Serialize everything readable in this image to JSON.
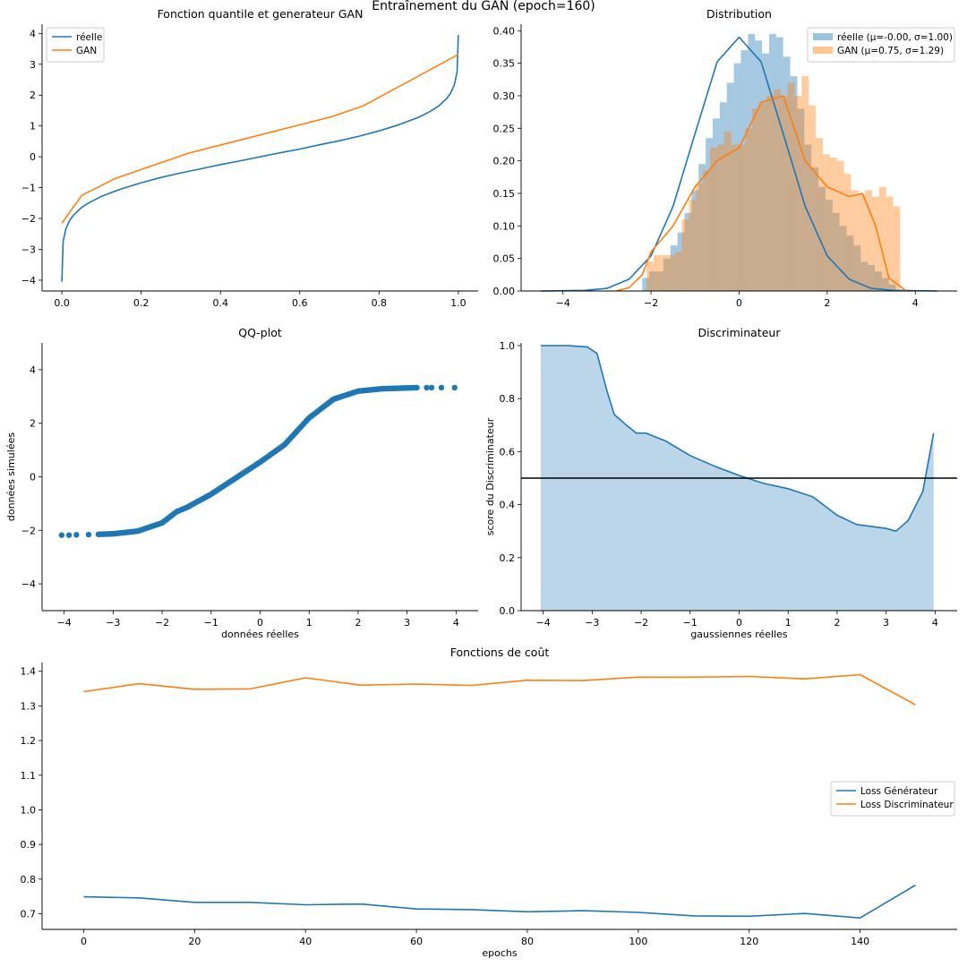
{
  "suptitle": "Entraînement du GAN (epoch=160)",
  "colors": {
    "blue": "#1f77b4",
    "orange": "#ff7f0e",
    "black": "#000000"
  },
  "chart_data": [
    {
      "id": "quantile",
      "type": "line",
      "title": "Fonction quantile et generateur GAN",
      "xlabel": "",
      "ylabel": "",
      "xlim": [
        -0.05,
        1.05
      ],
      "ylim": [
        -4.35,
        4.3
      ],
      "xticks": [
        0.0,
        0.2,
        0.4,
        0.6,
        0.8,
        1.0
      ],
      "xtick_labels": [
        "0.0",
        "0.2",
        "0.4",
        "0.6",
        "0.8",
        "1.0"
      ],
      "yticks": [
        -4,
        -3,
        -2,
        -1,
        0,
        1,
        2,
        3,
        4
      ],
      "ytick_labels": [
        "−4",
        "−3",
        "−2",
        "−1",
        "0",
        "1",
        "2",
        "3",
        "4"
      ],
      "legend": "top-left",
      "series": [
        {
          "name": "réelle",
          "color": "#1f77b4",
          "x": [
            0.0,
            0.003,
            0.01,
            0.02,
            0.03,
            0.05,
            0.07,
            0.1,
            0.15,
            0.2,
            0.25,
            0.3,
            0.35,
            0.4,
            0.45,
            0.5,
            0.55,
            0.6,
            0.65,
            0.7,
            0.75,
            0.8,
            0.85,
            0.9,
            0.93,
            0.95,
            0.97,
            0.98,
            0.99,
            0.997,
            1.0
          ],
          "y": [
            -4.05,
            -2.75,
            -2.33,
            -2.05,
            -1.88,
            -1.64,
            -1.48,
            -1.28,
            -1.04,
            -0.84,
            -0.67,
            -0.52,
            -0.39,
            -0.25,
            -0.13,
            0.0,
            0.13,
            0.25,
            0.39,
            0.52,
            0.67,
            0.84,
            1.04,
            1.28,
            1.48,
            1.64,
            1.88,
            2.05,
            2.33,
            2.75,
            3.95
          ]
        },
        {
          "name": "GAN",
          "color": "#ff7f0e",
          "x": [
            0.0,
            0.05,
            0.135,
            0.32,
            0.68,
            0.76,
            1.0
          ],
          "y": [
            -2.15,
            -1.25,
            -0.7,
            0.12,
            1.3,
            1.65,
            3.32
          ]
        }
      ]
    },
    {
      "id": "distribution",
      "type": "bar",
      "title": "Distribution",
      "xlabel": "",
      "ylabel": "",
      "xlim": [
        -4.95,
        4.95
      ],
      "ylim": [
        0,
        0.41
      ],
      "xticks": [
        -4,
        -2,
        0,
        2,
        4
      ],
      "xtick_labels": [
        "−4",
        "−2",
        "0",
        "2",
        "4"
      ],
      "yticks": [
        0.0,
        0.05,
        0.1,
        0.15,
        0.2,
        0.25,
        0.3,
        0.35,
        0.4
      ],
      "ytick_labels": [
        "0.00",
        "0.05",
        "0.10",
        "0.15",
        "0.20",
        "0.25",
        "0.30",
        "0.35",
        "0.40"
      ],
      "legend": "top-right",
      "series": [
        {
          "name": "réelle (μ=-0.00, σ=1.00)",
          "color": "#1f77b4",
          "bins_x0": -2.2,
          "bin_width": 0.16,
          "hist": [
            0.02,
            0.03,
            0.03,
            0.05,
            0.07,
            0.09,
            0.12,
            0.155,
            0.195,
            0.235,
            0.265,
            0.29,
            0.32,
            0.35,
            0.37,
            0.395,
            0.385,
            0.365,
            0.395,
            0.39,
            0.36,
            0.33,
            0.28,
            0.225,
            0.19,
            0.16,
            0.14,
            0.12,
            0.1,
            0.085,
            0.07,
            0.045,
            0.04,
            0.03,
            0.02,
            0.01
          ],
          "kde_x": [
            -4.5,
            -3.5,
            -3.0,
            -2.5,
            -2.0,
            -1.5,
            -1.0,
            -0.5,
            0.0,
            0.5,
            1.0,
            1.5,
            2.0,
            2.5,
            3.0,
            3.5,
            4.5
          ],
          "kde_y": [
            0.0,
            0.001,
            0.004,
            0.018,
            0.054,
            0.13,
            0.242,
            0.352,
            0.39,
            0.352,
            0.242,
            0.13,
            0.054,
            0.018,
            0.004,
            0.001,
            0.0
          ]
        },
        {
          "name": "GAN (μ=0.75, σ=1.29)",
          "color": "#ff7f0e",
          "bins_x0": -2.1,
          "bin_width": 0.16,
          "hist": [
            0.045,
            0.055,
            0.055,
            0.055,
            0.06,
            0.11,
            0.14,
            0.165,
            0.185,
            0.22,
            0.225,
            0.245,
            0.225,
            0.225,
            0.25,
            0.28,
            0.29,
            0.3,
            0.31,
            0.3,
            0.32,
            0.3,
            0.33,
            0.285,
            0.235,
            0.21,
            0.205,
            0.2,
            0.18,
            0.155,
            0.15,
            0.155,
            0.145,
            0.16,
            0.145,
            0.13
          ],
          "kde_x": [
            -2.8,
            -2.5,
            -2.2,
            -2.0,
            -1.5,
            -1.0,
            -0.5,
            0.0,
            0.5,
            1.0,
            1.5,
            2.0,
            2.5,
            2.8,
            3.1,
            3.4,
            3.8
          ],
          "kde_y": [
            0.0,
            0.005,
            0.025,
            0.06,
            0.1,
            0.16,
            0.2,
            0.22,
            0.29,
            0.3,
            0.2,
            0.16,
            0.145,
            0.15,
            0.1,
            0.02,
            0.0
          ]
        }
      ]
    },
    {
      "id": "qqplot",
      "type": "scatter",
      "title": "QQ-plot",
      "xlabel": "données réelles",
      "ylabel": "données simulées",
      "xlim": [
        -4.45,
        4.45
      ],
      "ylim": [
        -5.0,
        5.0
      ],
      "xticks": [
        -4,
        -3,
        -2,
        -1,
        0,
        1,
        2,
        3,
        4
      ],
      "xtick_labels": [
        "−4",
        "−3",
        "−2",
        "−1",
        "0",
        "1",
        "2",
        "3",
        "4"
      ],
      "yticks": [
        -4,
        -2,
        0,
        2,
        4
      ],
      "ytick_labels": [
        "−4",
        "−2",
        "0",
        "2",
        "4"
      ],
      "series": [
        {
          "color": "#1f77b4",
          "curve_x": [
            -3.3,
            -3.0,
            -2.5,
            -2.0,
            -1.7,
            -1.5,
            -1.0,
            -0.5,
            0.0,
            0.5,
            1.0,
            1.5,
            2.0,
            2.5,
            3.2
          ],
          "curve_y": [
            -2.15,
            -2.13,
            -2.03,
            -1.72,
            -1.3,
            -1.15,
            -0.65,
            -0.05,
            0.55,
            1.2,
            2.2,
            2.9,
            3.2,
            3.29,
            3.33
          ],
          "outliers_x": [
            -4.05,
            -3.9,
            -3.75,
            -3.5,
            3.4,
            3.5,
            3.7,
            3.97
          ],
          "outliers_y": [
            -2.18,
            -2.18,
            -2.17,
            -2.16,
            3.33,
            3.33,
            3.33,
            3.33
          ]
        }
      ]
    },
    {
      "id": "discriminator",
      "type": "area",
      "title": "Discriminateur",
      "xlabel": "gaussiennes réelles",
      "ylabel": "score du Discriminateur",
      "xlim": [
        -4.45,
        4.45
      ],
      "ylim": [
        0,
        1.01
      ],
      "xticks": [
        -4,
        -3,
        -2,
        -1,
        0,
        1,
        2,
        3,
        4
      ],
      "xtick_labels": [
        "−4",
        "−3",
        "−2",
        "−1",
        "0",
        "1",
        "2",
        "3",
        "4"
      ],
      "yticks": [
        0.0,
        0.2,
        0.4,
        0.6,
        0.8,
        1.0
      ],
      "ytick_labels": [
        "0.0",
        "0.2",
        "0.4",
        "0.6",
        "0.8",
        "1.0"
      ],
      "hline": 0.5,
      "series": [
        {
          "color": "#1f77b4",
          "x": [
            -4.05,
            -3.5,
            -3.1,
            -2.9,
            -2.7,
            -2.55,
            -2.3,
            -2.1,
            -1.9,
            -1.5,
            -1.0,
            -0.5,
            0.0,
            0.5,
            1.0,
            1.5,
            2.0,
            2.4,
            2.8,
            3.0,
            3.2,
            3.45,
            3.75,
            3.97
          ],
          "y": [
            1.0,
            1.0,
            0.995,
            0.97,
            0.83,
            0.74,
            0.7,
            0.67,
            0.67,
            0.64,
            0.585,
            0.545,
            0.51,
            0.48,
            0.46,
            0.43,
            0.36,
            0.325,
            0.315,
            0.31,
            0.3,
            0.34,
            0.45,
            0.67
          ]
        }
      ]
    },
    {
      "id": "losses",
      "type": "line",
      "title": "Fonctions de coût",
      "xlabel": "epochs",
      "ylabel": "",
      "xlim": [
        -7.5,
        157.5
      ],
      "ylim": [
        0.655,
        1.425
      ],
      "xticks": [
        0,
        20,
        40,
        60,
        80,
        100,
        120,
        140
      ],
      "xtick_labels": [
        "0",
        "20",
        "40",
        "60",
        "80",
        "100",
        "120",
        "140"
      ],
      "yticks": [
        0.7,
        0.8,
        0.9,
        1.0,
        1.1,
        1.2,
        1.3,
        1.4
      ],
      "ytick_labels": [
        "0.7",
        "0.8",
        "0.9",
        "1.0",
        "1.1",
        "1.2",
        "1.3",
        "1.4"
      ],
      "legend": "right",
      "x": [
        0,
        10,
        20,
        30,
        40,
        50,
        60,
        70,
        80,
        90,
        100,
        110,
        120,
        130,
        140,
        150
      ],
      "series": [
        {
          "name": "Loss Générateur",
          "color": "#1f77b4",
          "values": [
            0.749,
            0.746,
            0.733,
            0.733,
            0.726,
            0.728,
            0.714,
            0.712,
            0.706,
            0.709,
            0.704,
            0.694,
            0.693,
            0.701,
            0.688,
            0.783
          ]
        },
        {
          "name": "Loss Discriminateur",
          "color": "#ff7f0e",
          "values": [
            1.341,
            1.364,
            1.348,
            1.349,
            1.381,
            1.36,
            1.363,
            1.359,
            1.374,
            1.373,
            1.383,
            1.383,
            1.385,
            1.378,
            1.39,
            1.303
          ]
        }
      ]
    }
  ]
}
